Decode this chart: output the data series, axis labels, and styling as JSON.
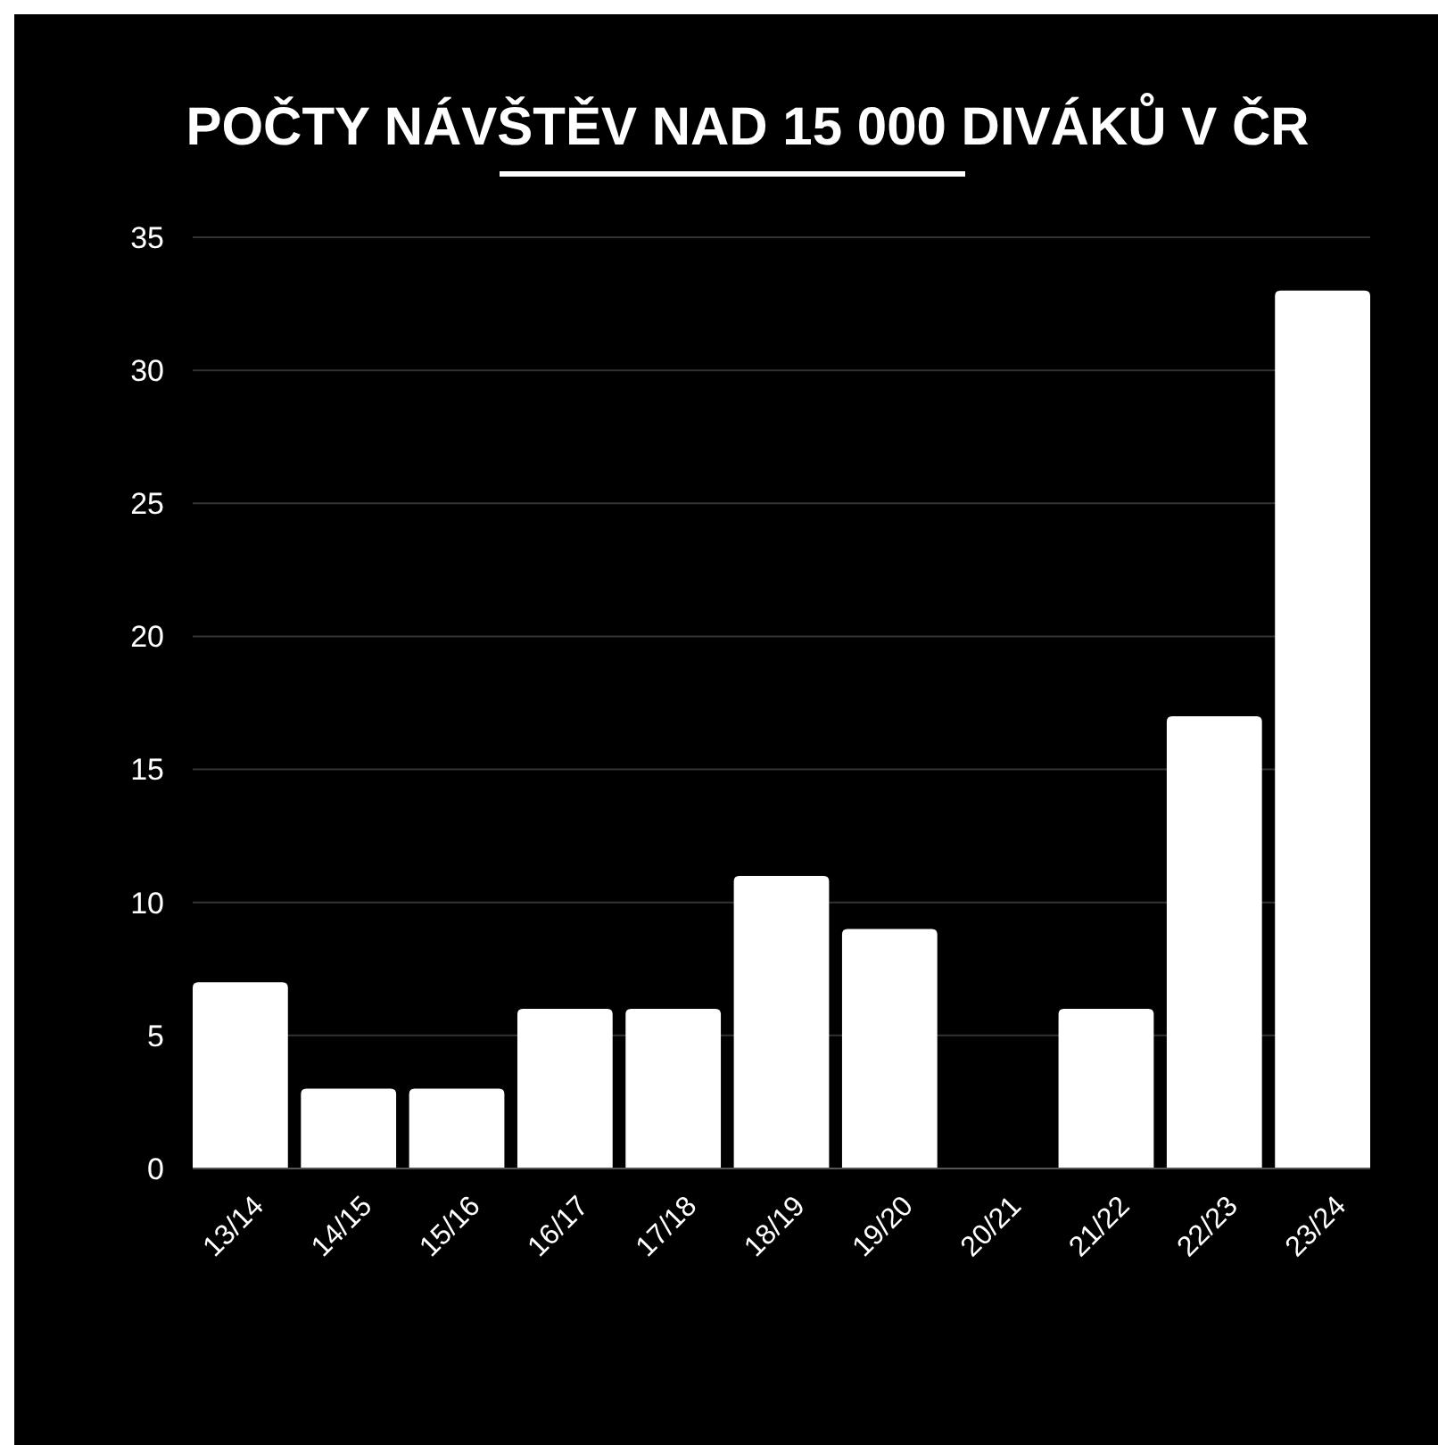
{
  "chart_data": {
    "type": "bar",
    "title": "POČTY NÁVŠTĚV NAD 15 000 DIVÁKŮ V ČR",
    "categories": [
      "13/14",
      "14/15",
      "15/16",
      "16/17",
      "17/18",
      "18/19",
      "19/20",
      "20/21",
      "21/22",
      "22/23",
      "23/24"
    ],
    "values": [
      7,
      3,
      3,
      6,
      6,
      11,
      9,
      0,
      6,
      17,
      33
    ],
    "color": "#ffffff",
    "ylim": [
      0,
      35
    ],
    "yticks": [
      0,
      5,
      10,
      15,
      20,
      25,
      30,
      35
    ],
    "grid": "y"
  }
}
